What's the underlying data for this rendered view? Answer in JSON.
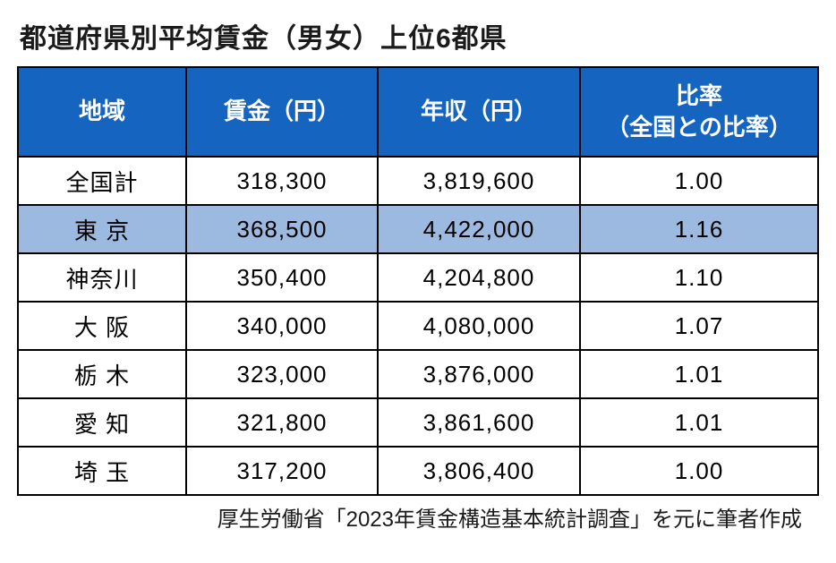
{
  "title": "都道府県別平均賃金（男女）上位6都県",
  "columns": {
    "region": "地域",
    "wage": "賃金（円）",
    "annual": "年収（円）",
    "ratio_line1": "比率",
    "ratio_line2": "（全国との比率）"
  },
  "rows": [
    {
      "region": "全国計",
      "wage": "318,300",
      "annual": "3,819,600",
      "ratio": "1.00",
      "highlight": false,
      "spaced": false
    },
    {
      "region": "東 京",
      "wage": "368,500",
      "annual": "4,422,000",
      "ratio": "1.16",
      "highlight": true,
      "spaced": true
    },
    {
      "region": "神奈川",
      "wage": "350,400",
      "annual": "4,204,800",
      "ratio": "1.10",
      "highlight": false,
      "spaced": false
    },
    {
      "region": "大 阪",
      "wage": "340,000",
      "annual": "4,080,000",
      "ratio": "1.07",
      "highlight": false,
      "spaced": true
    },
    {
      "region": "栃 木",
      "wage": "323,000",
      "annual": "3,876,000",
      "ratio": "1.01",
      "highlight": false,
      "spaced": true
    },
    {
      "region": "愛 知",
      "wage": "321,800",
      "annual": "3,861,600",
      "ratio": "1.01",
      "highlight": false,
      "spaced": true
    },
    {
      "region": "埼 玉",
      "wage": "317,200",
      "annual": "3,806,400",
      "ratio": "1.00",
      "highlight": false,
      "spaced": true
    }
  ],
  "source": "厚生労働省「2023年賃金構造基本統計調査」を元に筆者作成",
  "style": {
    "header_bg": "#1565c0",
    "header_fg": "#ffffff",
    "highlight_bg": "#9cb9e0",
    "border_color": "#000000",
    "background_color": "#ffffff"
  }
}
